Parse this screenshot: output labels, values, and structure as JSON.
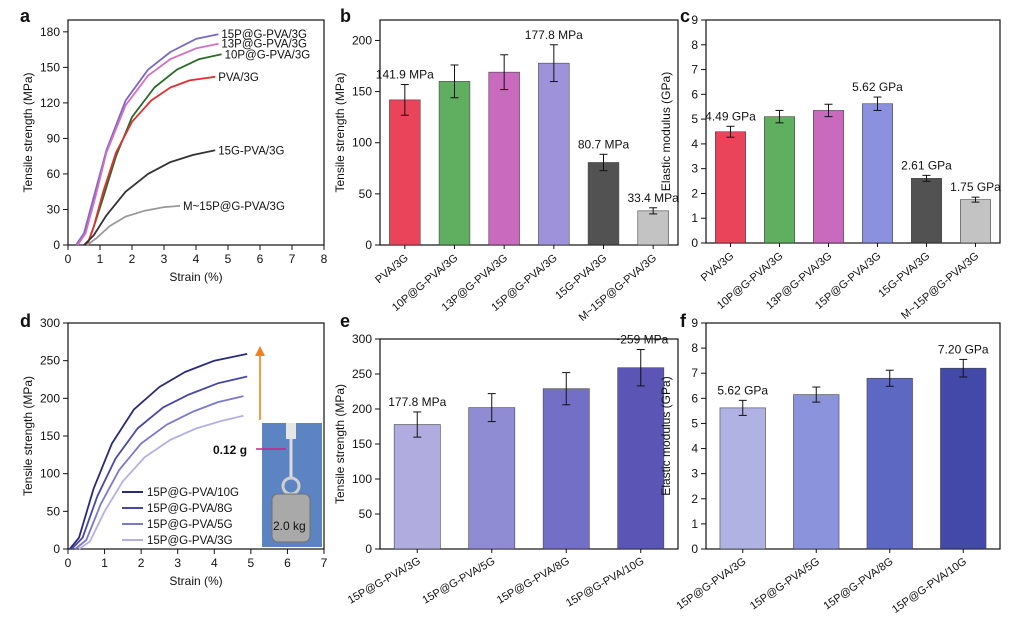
{
  "chart_data": [
    {
      "panel": "a",
      "type": "line",
      "xlabel": "Strain (%)",
      "ylabel": "Tensile strength (MPa)",
      "xlim": [
        0,
        8
      ],
      "ylim": [
        0,
        190
      ],
      "xticks": [
        "0",
        "1",
        "2",
        "3",
        "4",
        "5",
        "6",
        "7",
        "8"
      ],
      "yticks": [
        "0",
        "30",
        "60",
        "90",
        "120",
        "150",
        "180"
      ],
      "series": [
        {
          "name": "15P@G-PVA/3G",
          "color": "#7a68c4",
          "x": [
            0.25,
            0.5,
            0.8,
            1.2,
            1.8,
            2.5,
            3.2,
            4.0,
            4.7
          ],
          "y": [
            0,
            10,
            40,
            80,
            122,
            148,
            163,
            174,
            178
          ]
        },
        {
          "name": "13P@G-PVA/3G",
          "color": "#d46ec4",
          "x": [
            0.3,
            0.55,
            0.85,
            1.2,
            1.8,
            2.5,
            3.2,
            4.0,
            4.7
          ],
          "y": [
            0,
            10,
            40,
            78,
            118,
            143,
            157,
            166,
            170
          ]
        },
        {
          "name": "10P@G-PVA/3G",
          "color": "#2a6b2a",
          "x": [
            0.6,
            0.8,
            1.1,
            1.5,
            2.0,
            2.7,
            3.4,
            4.1,
            4.8
          ],
          "y": [
            0,
            15,
            40,
            75,
            108,
            133,
            148,
            157,
            161
          ]
        },
        {
          "name": "PVA/3G",
          "color": "#e03030",
          "x": [
            0.6,
            0.8,
            1.1,
            1.5,
            2.0,
            2.6,
            3.2,
            3.8,
            4.6
          ],
          "y": [
            0,
            15,
            45,
            78,
            104,
            122,
            133,
            139,
            142
          ]
        },
        {
          "name": "15G-PVA/3G",
          "color": "#333333",
          "x": [
            0.5,
            0.8,
            1.2,
            1.8,
            2.5,
            3.2,
            3.9,
            4.6
          ],
          "y": [
            0,
            8,
            25,
            45,
            60,
            70,
            76,
            80
          ]
        },
        {
          "name": "M~15P@G-PVA/3G",
          "color": "#999999",
          "x": [
            0.6,
            0.9,
            1.3,
            1.8,
            2.4,
            3.0,
            3.5
          ],
          "y": [
            0,
            6,
            16,
            24,
            29,
            32,
            33
          ]
        }
      ]
    },
    {
      "panel": "b",
      "type": "bar",
      "ylabel": "Tensile strength (MPa)",
      "ylim": [
        0,
        220
      ],
      "yticks": [
        "0",
        "50",
        "100",
        "150",
        "200"
      ],
      "categories": [
        "PVA/3G",
        "10P@G-PVA/3G",
        "13P@G-PVA/3G",
        "15P@G-PVA/3G",
        "15G-PVA/3G",
        "M~15P@G-PVA/3G"
      ],
      "values": [
        141.9,
        160,
        169,
        177.8,
        80.7,
        33.4
      ],
      "errors": [
        15,
        16,
        17,
        18,
        8,
        3
      ],
      "colors": [
        "#e8304a",
        "#4fa64f",
        "#c45ab8",
        "#9488d8",
        "#404040",
        "#bdbdbd"
      ],
      "value_labels": [
        "141.9 MPa",
        "",
        "",
        "177.8 MPa",
        "80.7 MPa",
        "33.4 MPa"
      ]
    },
    {
      "panel": "c",
      "type": "bar",
      "ylabel": "Elastic modulus (GPa)",
      "ylim": [
        0,
        9
      ],
      "yticks": [
        "0",
        "1",
        "2",
        "3",
        "4",
        "5",
        "6",
        "7",
        "8",
        "9"
      ],
      "categories": [
        "PVA/3G",
        "10P@G-PVA/3G",
        "13P@G-PVA/3G",
        "15P@G-PVA/3G",
        "15G-PVA/3G",
        "M~15P@G-PVA/3G"
      ],
      "values": [
        4.49,
        5.1,
        5.35,
        5.62,
        2.61,
        1.75
      ],
      "errors": [
        0.22,
        0.25,
        0.25,
        0.27,
        0.12,
        0.1
      ],
      "colors": [
        "#e8304a",
        "#4fa64f",
        "#c45ab8",
        "#7f86dc",
        "#404040",
        "#bdbdbd"
      ],
      "value_labels": [
        "4.49 GPa",
        "",
        "",
        "5.62 GPa",
        "2.61 GPa",
        "1.75 GPa"
      ]
    },
    {
      "panel": "d",
      "type": "line",
      "xlabel": "Strain (%)",
      "ylabel": "Tensile strength (MPa)",
      "xlim": [
        0,
        7
      ],
      "ylim": [
        0,
        300
      ],
      "xticks": [
        "0",
        "1",
        "2",
        "3",
        "4",
        "5",
        "6",
        "7"
      ],
      "yticks": [
        "0",
        "50",
        "100",
        "150",
        "200",
        "250",
        "300"
      ],
      "series": [
        {
          "name": "15P@G-PVA/10G",
          "color": "#2a2a7a",
          "x": [
            0.05,
            0.3,
            0.7,
            1.2,
            1.8,
            2.5,
            3.2,
            4.0,
            4.9
          ],
          "y": [
            0,
            15,
            80,
            140,
            185,
            215,
            235,
            250,
            259
          ]
        },
        {
          "name": "15P@G-PVA/8G",
          "color": "#4848a8",
          "x": [
            0.1,
            0.4,
            0.8,
            1.3,
            1.9,
            2.6,
            3.3,
            4.1,
            4.9
          ],
          "y": [
            0,
            15,
            70,
            120,
            160,
            188,
            205,
            220,
            229
          ]
        },
        {
          "name": "15P@G-PVA/5G",
          "color": "#7c78cc",
          "x": [
            0.2,
            0.5,
            0.9,
            1.4,
            2.0,
            2.7,
            3.4,
            4.1,
            4.8
          ],
          "y": [
            0,
            12,
            60,
            105,
            140,
            165,
            182,
            195,
            203
          ]
        },
        {
          "name": "15P@G-PVA/3G",
          "color": "#b4b0e4",
          "x": [
            0.3,
            0.6,
            1.0,
            1.5,
            2.1,
            2.8,
            3.5,
            4.2,
            4.8
          ],
          "y": [
            0,
            10,
            50,
            90,
            122,
            145,
            160,
            170,
            177
          ]
        }
      ],
      "inset_labels": [
        "0.12 g",
        "2.0 kg"
      ]
    },
    {
      "panel": "e",
      "type": "bar",
      "ylabel": "Tensile strength (MPa)",
      "ylim": [
        0,
        300
      ],
      "yticks": [
        "0",
        "50",
        "100",
        "150",
        "200",
        "250",
        "300"
      ],
      "categories": [
        "15P@G-PVA/3G",
        "15P@G-PVA/5G",
        "15P@G-PVA/8G",
        "15P@G-PVA/10G"
      ],
      "values": [
        177.8,
        202,
        229,
        259
      ],
      "errors": [
        18,
        20,
        23,
        26
      ],
      "colors": [
        "#a8a4dc",
        "#8480d0",
        "#6660c0",
        "#4a44ae"
      ],
      "value_labels": [
        "177.8 MPa",
        "",
        "",
        "~259 MPa"
      ]
    },
    {
      "panel": "f",
      "type": "bar",
      "ylabel": "Elastic modulus (GPa)",
      "ylim": [
        0,
        9
      ],
      "yticks": [
        "0",
        "1",
        "2",
        "3",
        "4",
        "5",
        "6",
        "7",
        "8",
        "9"
      ],
      "categories": [
        "15P@G-PVA/3G",
        "15P@G-PVA/5G",
        "15P@G-PVA/8G",
        "15P@G-PVA/10G"
      ],
      "values": [
        5.62,
        6.15,
        6.8,
        7.2
      ],
      "errors": [
        0.3,
        0.3,
        0.32,
        0.35
      ],
      "colors": [
        "#a8aae2",
        "#7e88d8",
        "#4c58bc",
        "#2e36a0"
      ],
      "value_labels": [
        "5.62 GPa",
        "",
        "",
        "7.20 GPa"
      ]
    }
  ]
}
